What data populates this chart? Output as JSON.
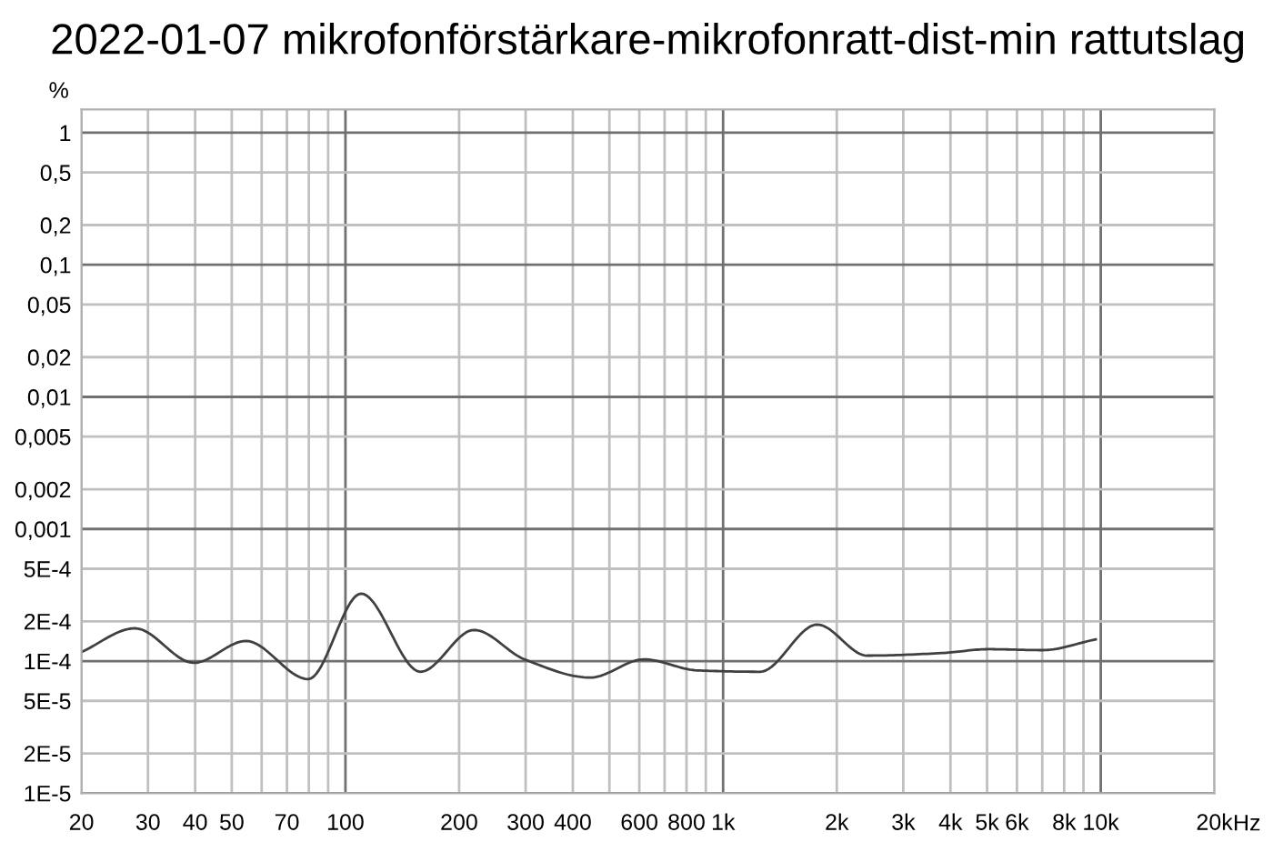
{
  "chart_data": {
    "type": "line",
    "title": "2022-01-07 mikrofonförstärkare-mikrofonratt-dist-min rattutslag",
    "ylabel": "%",
    "log": "xy",
    "grid": true,
    "marker": "none",
    "line_style": "solid",
    "xlim": [
      20,
      20000
    ],
    "ylim": [
      1e-05,
      1.5
    ],
    "xticks": [
      20,
      30,
      40,
      50,
      {
        "value": 60,
        "label": null
      },
      70,
      {
        "value": 80,
        "label": null
      },
      {
        "value": 90,
        "label": null
      },
      100,
      200,
      300,
      400,
      {
        "value": 500,
        "label": null
      },
      600,
      {
        "value": 700,
        "label": null
      },
      800,
      {
        "value": 900,
        "label": null
      },
      {
        "value": 1000,
        "label": "1k"
      },
      {
        "value": 2000,
        "label": "2k"
      },
      {
        "value": 3000,
        "label": "3k"
      },
      {
        "value": 4000,
        "label": "4k"
      },
      {
        "value": 5000,
        "label": "5k"
      },
      {
        "value": 6000,
        "label": "6k"
      },
      {
        "value": 7000,
        "label": null
      },
      {
        "value": 8000,
        "label": "8k"
      },
      {
        "value": 9000,
        "label": null
      },
      {
        "value": 10000,
        "label": "10k"
      },
      {
        "value": 20000,
        "label": "20k"
      }
    ],
    "xlabel": "Hz",
    "yticks": [
      {
        "value": 1e-05,
        "label": "1E-5"
      },
      {
        "value": 2e-05,
        "label": "2E-5"
      },
      {
        "value": 5e-05,
        "label": "5E-5"
      },
      {
        "value": 0.0001,
        "label": "1E-4"
      },
      {
        "value": 0.0002,
        "label": "2E-4"
      },
      {
        "value": 0.0005,
        "label": "5E-4"
      },
      {
        "value": 0.001,
        "label": "0,001"
      },
      {
        "value": 0.002,
        "label": "0,002"
      },
      {
        "value": 0.005,
        "label": "0,005"
      },
      {
        "value": 0.01,
        "label": "0,01"
      },
      {
        "value": 0.02,
        "label": "0,02"
      },
      {
        "value": 0.05,
        "label": "0,05"
      },
      {
        "value": 0.1,
        "label": "0,1"
      },
      {
        "value": 0.2,
        "label": "0,2"
      },
      {
        "value": 0.5,
        "label": "0,5"
      },
      1
    ],
    "x": [
      20,
      27.7,
      39.7,
      54.5,
      79.7,
      110,
      158,
      219,
      298,
      445,
      617,
      855,
      1253,
      1775,
      2405,
      3800,
      5045,
      7000,
      9700
    ],
    "series": [
      {
        "color": "#404040",
        "values": [
          0.000117,
          0.000177,
          9.7e-05,
          0.000142,
          7.3e-05,
          0.000324,
          8.3e-05,
          0.000172,
          0.000103,
          7.5e-05,
          0.000103,
          8.5e-05,
          8.3e-05,
          0.000189,
          0.00011,
          0.000115,
          0.000123,
          0.000121,
          0.000146
        ]
      }
    ]
  }
}
